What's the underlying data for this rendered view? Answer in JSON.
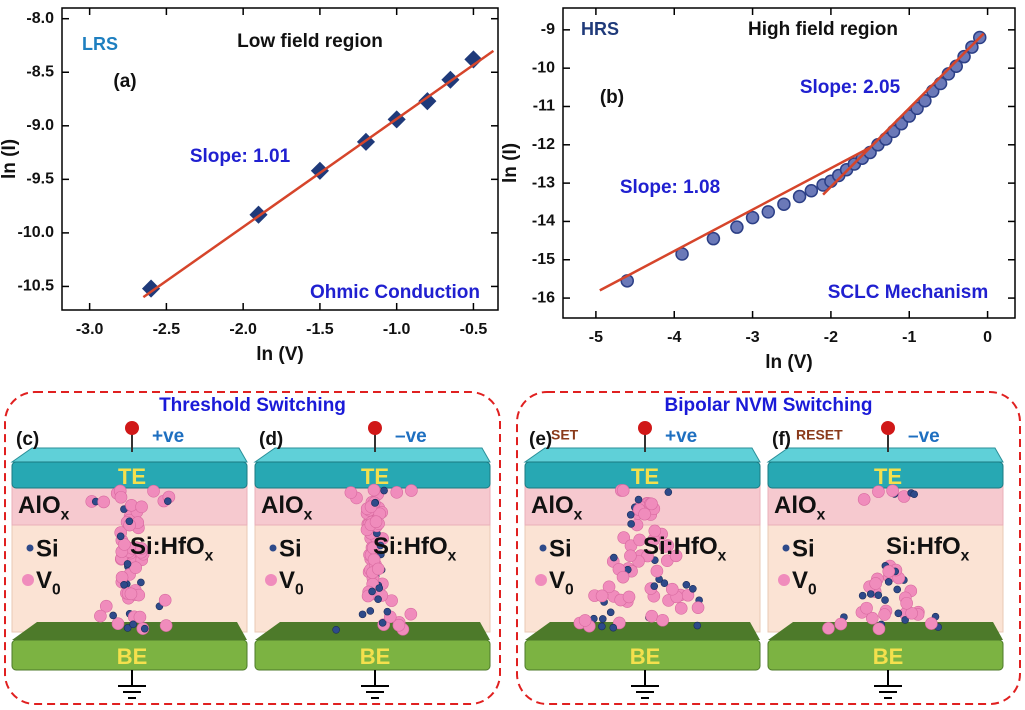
{
  "chart_data": [
    {
      "type": "scatter",
      "x_label": "ln (V)",
      "y_label": "ln (I)",
      "state": "LRS",
      "region": "Low field region",
      "panel": "(a)",
      "slopes": [
        "Slope: 1.01"
      ],
      "mechanism": "Ohmic Conduction",
      "xlim": [
        -3.18,
        -0.34
      ],
      "ylim": [
        -10.72,
        -7.9
      ],
      "xticks": [
        {
          "value": -3,
          "label": "-3.0"
        },
        -2.5,
        {
          "value": -2,
          "label": "-2.0"
        },
        -1.5,
        {
          "value": -1,
          "label": "-1.0"
        },
        -0.5
      ],
      "yticks": [
        {
          "value": -8,
          "label": "-8.0"
        },
        -8.5,
        {
          "value": -9,
          "label": "-9.0"
        },
        -9.5,
        {
          "value": -10,
          "label": "-10.0"
        },
        -10.5
      ],
      "series": [
        {
          "style": "markers",
          "marker": "diamond",
          "color": "#1f3a7a",
          "x": [
            -2.6,
            -1.9,
            -1.5,
            -1.2,
            -1.0,
            -0.8,
            -0.65,
            -0.5
          ],
          "values": [
            -10.52,
            -9.83,
            -9.42,
            -9.15,
            -8.94,
            -8.77,
            -8.57,
            -8.38
          ]
        },
        {
          "style": "line",
          "color": "#d6452b",
          "x": [
            -2.65,
            -0.37
          ],
          "values": [
            -10.6,
            -8.3
          ]
        }
      ]
    },
    {
      "type": "scatter",
      "x_label": "ln (V)",
      "y_label": "ln (I)",
      "state": "HRS",
      "region": "High field region",
      "panel": "(b)",
      "slopes": [
        "Slope: 2.05",
        "Slope: 1.08"
      ],
      "mechanism": "SCLC Mechanism",
      "xlim": [
        -5.42,
        0.35
      ],
      "ylim": [
        -16.52,
        -8.43
      ],
      "xticks": [
        -5,
        -4,
        -3,
        -2,
        -1,
        0
      ],
      "yticks": [
        -9,
        -10,
        -11,
        -12,
        -13,
        -14,
        -15,
        -16
      ],
      "series": [
        {
          "style": "markers",
          "marker": "circle",
          "color": "#2c3f86",
          "x": [
            -4.6,
            -3.9,
            -3.5,
            -3.2,
            -3.0,
            -2.8,
            -2.6,
            -2.4,
            -2.25,
            -2.1,
            -2.0,
            -1.9,
            -1.8,
            -1.7,
            -1.6,
            -1.5,
            -1.4,
            -1.3,
            -1.2,
            -1.1,
            -1.0,
            -0.9,
            -0.8,
            -0.7,
            -0.6,
            -0.5,
            -0.4,
            -0.3,
            -0.2,
            -0.1
          ],
          "values": [
            -15.55,
            -14.85,
            -14.45,
            -14.15,
            -13.9,
            -13.75,
            -13.55,
            -13.35,
            -13.2,
            -13.05,
            -12.95,
            -12.8,
            -12.65,
            -12.5,
            -12.35,
            -12.2,
            -12.0,
            -11.85,
            -11.65,
            -11.45,
            -11.25,
            -11.05,
            -10.85,
            -10.6,
            -10.4,
            -10.15,
            -9.95,
            -9.7,
            -9.45,
            -9.2
          ]
        },
        {
          "style": "line",
          "color": "#d6452b",
          "x": [
            -4.95,
            -1.5
          ],
          "values": [
            -15.8,
            -12.07
          ]
        },
        {
          "style": "line",
          "color": "#d6452b",
          "x": [
            -2.1,
            -0.05
          ],
          "values": [
            -13.3,
            -9.1
          ]
        }
      ]
    }
  ],
  "diagrams": {
    "groups": [
      {
        "title": "Threshold Switching",
        "panels": [
          {
            "label": "(c)",
            "polarity": "+ve",
            "top": "TE",
            "oxide": {
              "base": "AlO",
              "sub": "x"
            },
            "dopant": "Si",
            "vacancy": {
              "base": "V",
              "sub": "0"
            },
            "layer": {
              "base": "Si:HfO",
              "sub": "x"
            },
            "bottom": "BE"
          },
          {
            "label": "(d)",
            "polarity": "–ve",
            "top": "TE",
            "oxide": {
              "base": "AlO",
              "sub": "x"
            },
            "dopant": "Si",
            "vacancy": {
              "base": "V",
              "sub": "0"
            },
            "layer": {
              "base": "Si:HfO",
              "sub": "x"
            },
            "bottom": "BE"
          }
        ]
      },
      {
        "title": "Bipolar NVM Switching",
        "panels": [
          {
            "label": "(e)",
            "operation": "SET",
            "polarity": "+ve",
            "top": "TE",
            "oxide": {
              "base": "AlO",
              "sub": "x"
            },
            "dopant": "Si",
            "vacancy": {
              "base": "V",
              "sub": "0"
            },
            "layer": {
              "base": "Si:HfO",
              "sub": "x"
            },
            "bottom": "BE"
          },
          {
            "label": "(f)",
            "operation": "RESET",
            "polarity": "–ve",
            "top": "TE",
            "oxide": {
              "base": "AlO",
              "sub": "x"
            },
            "dopant": "Si",
            "vacancy": {
              "base": "V",
              "sub": "0"
            },
            "layer": {
              "base": "Si:HfO",
              "sub": "x"
            },
            "bottom": "BE"
          }
        ]
      }
    ]
  }
}
